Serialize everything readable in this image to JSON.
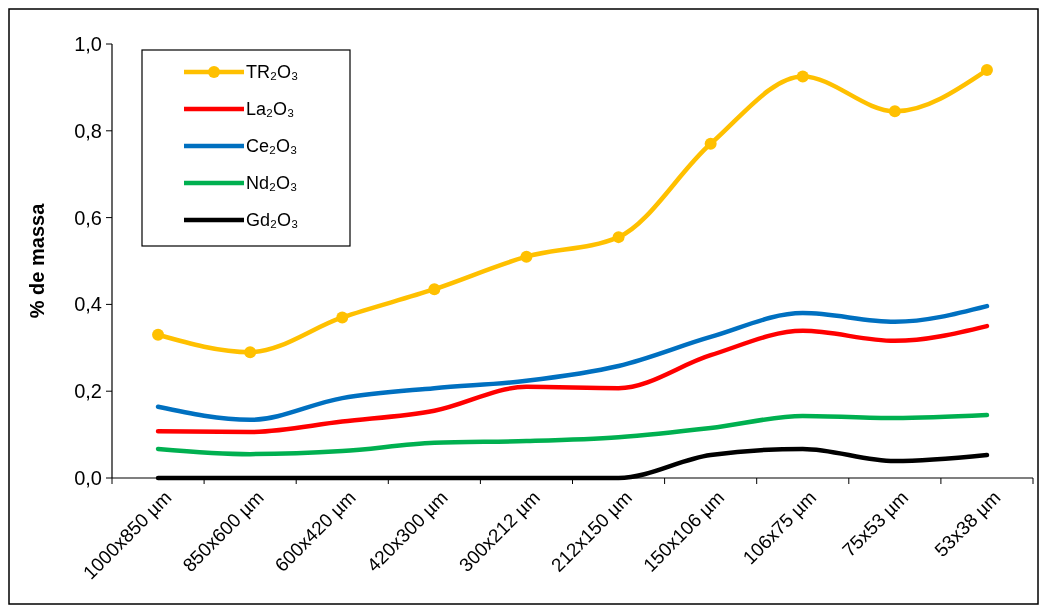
{
  "chart_data": {
    "type": "line",
    "ylabel": "% de massa",
    "categories": [
      "1000x850 µm",
      "850x600 µm",
      "600x420 µm",
      "420x300 µm",
      "300x212 µm",
      "212x150 µm",
      "150x106 µm",
      "106x75 µm",
      "75x53 µm",
      "53x38 µm"
    ],
    "series": [
      {
        "name": "TR₂O₃",
        "color": "#ffc000",
        "marker": "circle",
        "values": [
          0.33,
          0.29,
          0.37,
          0.435,
          0.51,
          0.555,
          0.77,
          0.925,
          0.845,
          0.94
        ]
      },
      {
        "name": "La₂O₃",
        "color": "#ff0000",
        "marker": "none",
        "values": [
          0.108,
          0.106,
          0.13,
          0.155,
          0.21,
          0.207,
          0.283,
          0.339,
          0.316,
          0.35
        ]
      },
      {
        "name": "Ce₂O₃",
        "color": "#0070c0",
        "marker": "none",
        "values": [
          0.164,
          0.134,
          0.184,
          0.207,
          0.224,
          0.258,
          0.325,
          0.38,
          0.36,
          0.396
        ]
      },
      {
        "name": "Nd₂O₃",
        "color": "#00b050",
        "marker": "none",
        "values": [
          0.067,
          0.055,
          0.062,
          0.081,
          0.085,
          0.094,
          0.115,
          0.143,
          0.138,
          0.145
        ]
      },
      {
        "name": "Gd₂O₃",
        "color": "#000000",
        "marker": "none",
        "values": [
          0,
          0,
          0,
          0,
          0,
          0,
          0.053,
          0.067,
          0.039,
          0.053
        ]
      }
    ],
    "ylim": [
      0,
      1
    ],
    "yticks": [
      {
        "value": 0,
        "label": "0,0"
      },
      {
        "value": 0.2,
        "label": "0,2"
      },
      {
        "value": 0.4,
        "label": "0,4"
      },
      {
        "value": 0.6,
        "label": "0,6"
      },
      {
        "value": 0.8,
        "label": "0,8"
      },
      {
        "value": 1,
        "label": "1,0"
      }
    ],
    "grid": false,
    "legend": "top left"
  }
}
